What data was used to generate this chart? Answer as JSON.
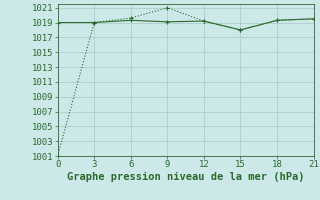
{
  "line1_x": [
    0,
    3,
    6,
    9,
    12,
    15,
    18,
    21
  ],
  "line1_y": [
    1001,
    1019,
    1019.6,
    1021,
    1019.2,
    1018,
    1019.3,
    1019.5
  ],
  "line2_x": [
    0,
    3,
    6,
    9,
    12,
    15,
    18,
    21
  ],
  "line2_y": [
    1019,
    1019,
    1019.3,
    1019.1,
    1019.2,
    1018,
    1019.3,
    1019.5
  ],
  "line_color": "#2d6a2d",
  "bg_color": "#cce8e8",
  "grid_color": "#b0cccc",
  "xlabel": "Graphe pression niveau de la mer (hPa)",
  "xlim": [
    0,
    21
  ],
  "ylim": [
    1001,
    1021.5
  ],
  "yticks": [
    1001,
    1003,
    1005,
    1007,
    1009,
    1011,
    1013,
    1015,
    1017,
    1019,
    1021
  ],
  "xticks": [
    0,
    3,
    6,
    9,
    12,
    15,
    18,
    21
  ],
  "xlabel_fontsize": 7.5,
  "tick_fontsize": 6.5
}
